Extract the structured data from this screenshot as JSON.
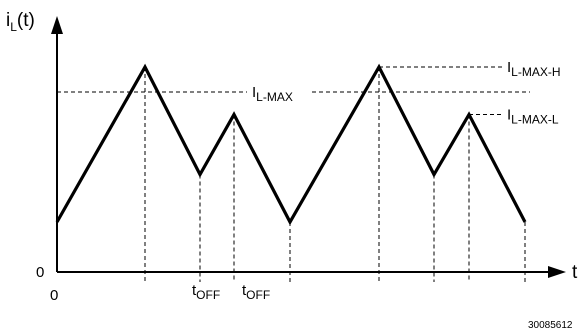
{
  "chart_data": {
    "type": "line",
    "ylabel": {
      "main": "i",
      "sub": "L",
      "rest": "(t)"
    },
    "xlabel": "t",
    "origin_y_label": "0",
    "origin_x_label": "0",
    "series": [
      {
        "points": [
          {
            "x": 0,
            "y": 0.2
          },
          {
            "x": 88,
            "y": 0.82
          },
          {
            "x": 143,
            "y": 0.39
          },
          {
            "x": 177,
            "y": 0.63
          },
          {
            "x": 233,
            "y": 0.2
          },
          {
            "x": 322,
            "y": 0.82
          },
          {
            "x": 377,
            "y": 0.39
          },
          {
            "x": 412,
            "y": 0.63
          },
          {
            "x": 468,
            "y": 0.2
          }
        ]
      }
    ],
    "ylim": [
      0,
      1
    ],
    "xlim": [
      0,
      500
    ],
    "reference_lines": [
      {
        "level": 0.72,
        "label_main": "I",
        "label_sub": "L-MAX"
      },
      {
        "level": 0.82,
        "label_main": "I",
        "label_sub": "L-MAX-H"
      },
      {
        "level": 0.63,
        "label_main": "I",
        "label_sub": "L-MAX-L"
      }
    ],
    "vertical_markers_x": [
      88,
      143,
      177,
      233,
      322,
      377,
      412,
      468
    ],
    "interval_labels": [
      {
        "main": "t",
        "sub": "OFF",
        "at": 143
      },
      {
        "main": "t",
        "sub": "OFF",
        "at": 177
      }
    ]
  },
  "figure_id": "30085612"
}
